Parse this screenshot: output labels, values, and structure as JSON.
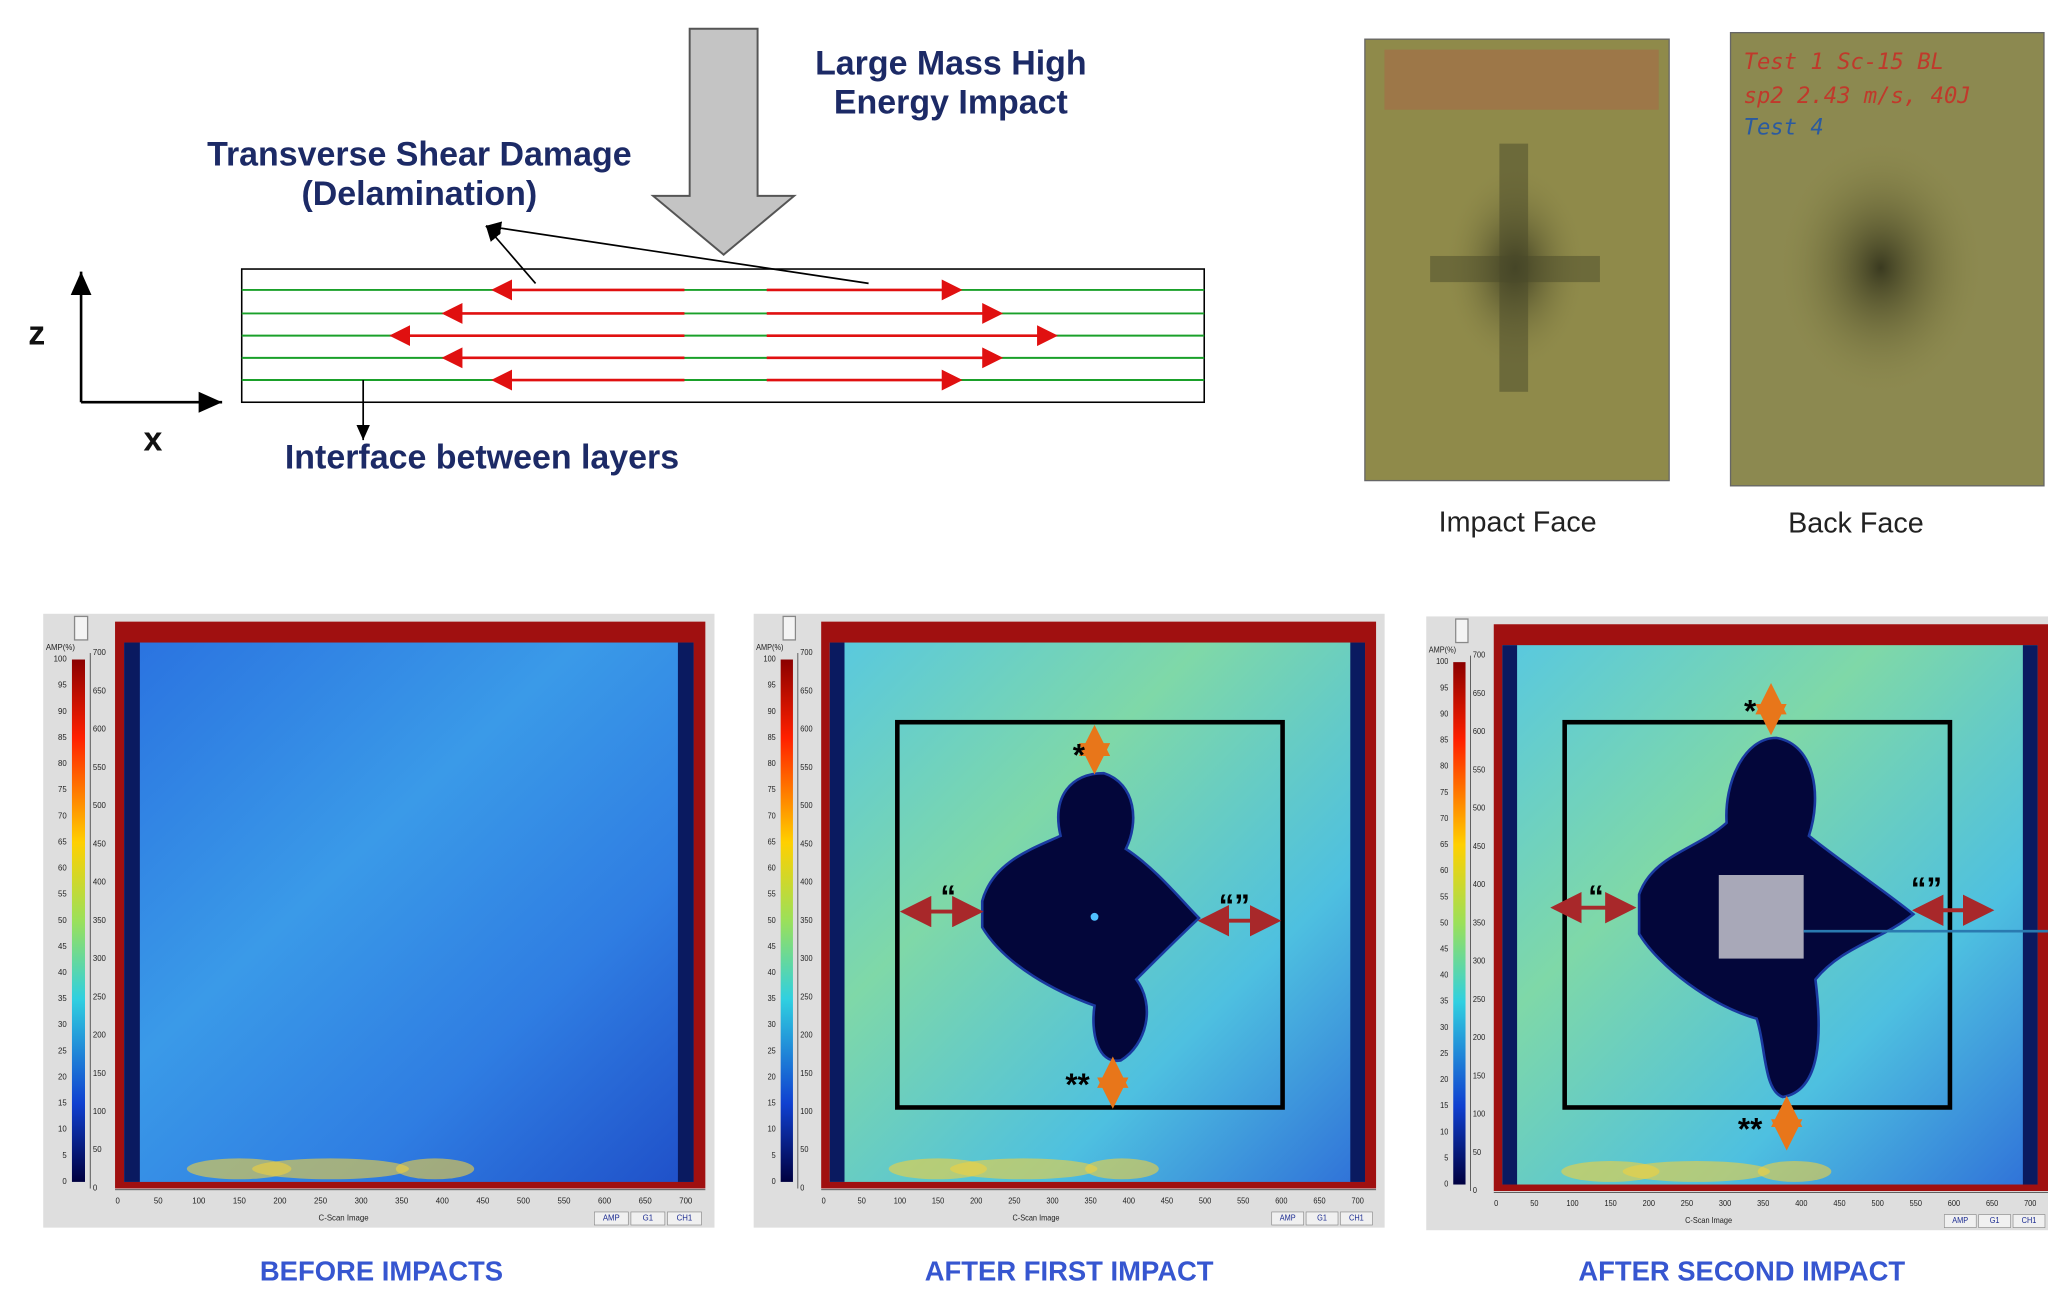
{
  "diagram": {
    "impact_label": [
      "Large Mass High",
      "Energy Impact"
    ],
    "damage_label": [
      "Transverse Shear Damage",
      "(Delamination)"
    ],
    "interface_label": "Interface between layers",
    "z_axis": "z",
    "x_axis": "x"
  },
  "photos": [
    {
      "caption": "Impact Face"
    },
    {
      "caption": "Back Face",
      "handwriting": [
        "Test 1 Sc-15 BL",
        "sp2 2.43 m/s, 40J",
        "Test 4"
      ]
    }
  ],
  "cscan": {
    "amp_label": "AMP(%)",
    "amp_ticks": [
      0,
      5,
      10,
      15,
      20,
      25,
      30,
      35,
      40,
      45,
      50,
      55,
      60,
      65,
      70,
      75,
      80,
      85,
      90,
      95,
      100
    ],
    "depth_ticks": [
      0,
      50,
      100,
      150,
      200,
      250,
      300,
      350,
      400,
      450,
      500,
      550,
      600,
      650,
      700
    ],
    "x_ticks": [
      0,
      50,
      100,
      150,
      200,
      250,
      300,
      350,
      400,
      450,
      500,
      550,
      600,
      650,
      700
    ],
    "image_label": "C-Scan Image",
    "buttons": [
      "AMP",
      "G1",
      "CH1"
    ]
  },
  "panels": [
    {
      "caption": "BEFORE IMPACTS"
    },
    {
      "caption": "AFTER FIRST IMPACT",
      "marks": [
        "*",
        "**",
        "“",
        "“”"
      ]
    },
    {
      "caption": "AFTER SECOND IMPACT",
      "marks": [
        "*",
        "**",
        "“",
        "“”"
      ]
    }
  ]
}
